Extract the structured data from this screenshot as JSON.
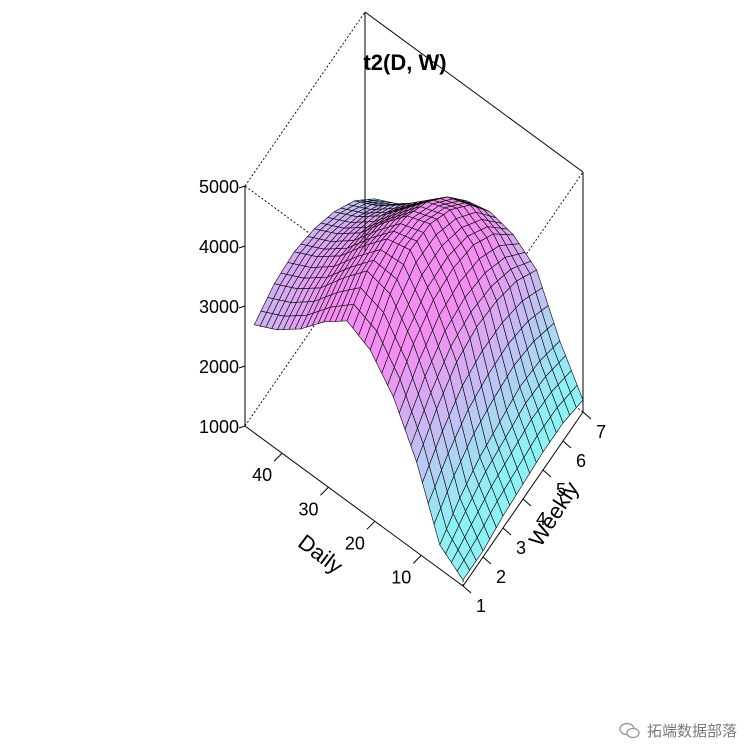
{
  "chart_data": {
    "type": "surface3d",
    "title": "t2(D, W)",
    "xlabel": "Daily",
    "ylabel": "Weekly",
    "zlabel": "",
    "xlim": [
      1,
      48
    ],
    "ylim": [
      1,
      7
    ],
    "zlim": [
      1000,
      5000
    ],
    "x_ticks": [
      "10",
      "20",
      "30",
      "40"
    ],
    "y_ticks": [
      "1",
      "2",
      "3",
      "4",
      "5",
      "6",
      "7"
    ],
    "z_ticks": [
      "1000",
      "2000",
      "3000",
      "4000",
      "5000"
    ],
    "daily_values": [
      1,
      6,
      11,
      16,
      21,
      26,
      31,
      36,
      41,
      46
    ],
    "weekly_values": [
      1,
      2,
      3,
      4,
      5,
      6,
      7
    ],
    "z_values": [
      [
        1100,
        1100,
        1200,
        1250,
        1300,
        1300,
        1200
      ],
      [
        1400,
        1700,
        1900,
        2000,
        2100,
        2050,
        1900
      ],
      [
        2500,
        2900,
        3200,
        3300,
        3250,
        3100,
        2800
      ],
      [
        3300,
        3700,
        3950,
        4000,
        3900,
        3600,
        3100
      ],
      [
        3800,
        4250,
        4500,
        4450,
        4200,
        3800,
        3200
      ],
      [
        4000,
        4350,
        4400,
        4300,
        4050,
        3650,
        3100
      ],
      [
        3700,
        3950,
        4000,
        3900,
        3650,
        3300,
        2800
      ],
      [
        3300,
        3500,
        3550,
        3450,
        3250,
        2950,
        2500
      ],
      [
        3000,
        3200,
        3250,
        3150,
        2950,
        2650,
        2200
      ],
      [
        2800,
        3000,
        3050,
        2950,
        2750,
        2450,
        2000
      ]
    ],
    "color_low": "#8ef2f5",
    "color_high": "#f48ef2",
    "box": true
  },
  "watermark": {
    "text": "拓端数据部落",
    "icon": "wechat-icon"
  }
}
